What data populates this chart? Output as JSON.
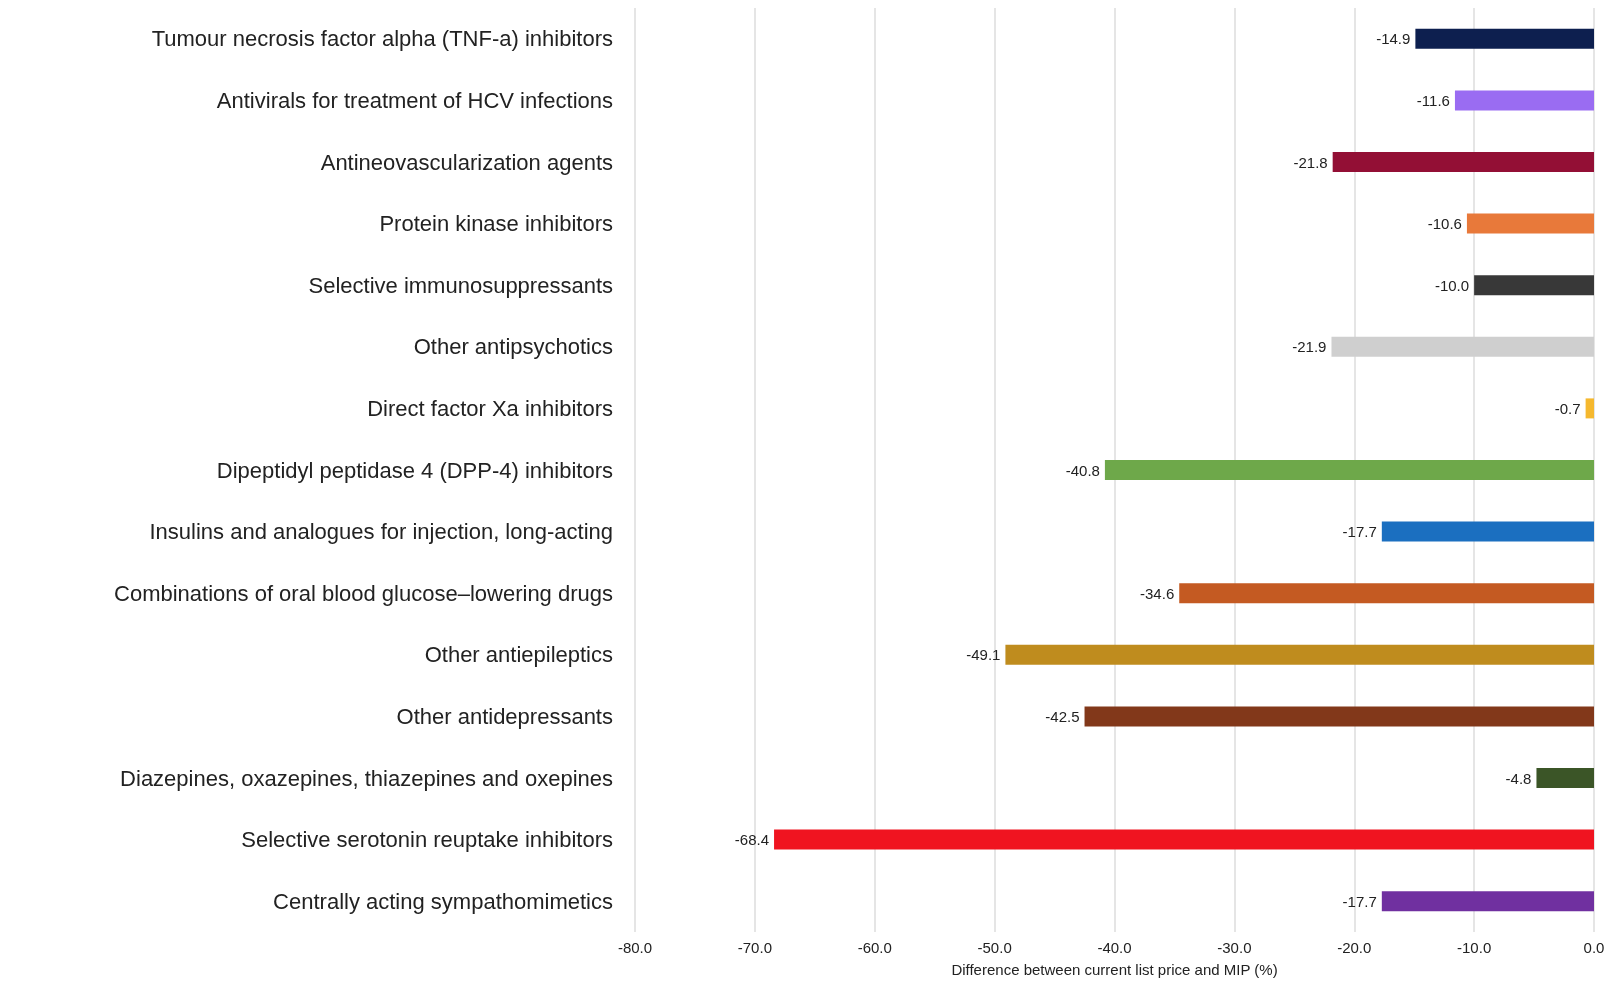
{
  "chart_data": {
    "type": "bar",
    "orientation": "horizontal",
    "xlabel": "Difference between current list price and MIP (%)",
    "categories": [
      "Tumour necrosis factor alpha (TNF-a) inhibitors",
      "Antivirals for treatment of HCV infections",
      "Antineovascularization agents",
      "Protein kinase inhibitors",
      "Selective immunosuppressants",
      "Other antipsychotics",
      "Direct factor Xa inhibitors",
      "Dipeptidyl peptidase 4 (DPP-4) inhibitors",
      "Insulins and analogues for injection, long-acting",
      "Combinations of oral blood glucose–lowering drugs",
      "Other antiepileptics",
      "Other antidepressants",
      "Diazepines, oxazepines, thiazepines and oxepines",
      "Selective serotonin reuptake inhibitors",
      "Centrally acting sympathomimetics"
    ],
    "values": [
      -14.9,
      -11.6,
      -21.8,
      -10.6,
      -10.0,
      -21.9,
      -0.7,
      -40.8,
      -17.7,
      -34.6,
      -49.1,
      -42.5,
      -4.8,
      -68.4,
      -17.7
    ],
    "value_labels": [
      "-14.9",
      "-11.6",
      "-21.8",
      "-10.6",
      "-10.0",
      "-21.9",
      "-0.7",
      "-40.8",
      "-17.7",
      "-34.6",
      "-49.1",
      "-42.5",
      "-4.8",
      "-68.4",
      "-17.7"
    ],
    "colors": [
      "#0d1f4f",
      "#9a6cf2",
      "#930f35",
      "#e8793a",
      "#383838",
      "#cfcfcf",
      "#f5b82e",
      "#6ea84a",
      "#1b6fc0",
      "#c45a22",
      "#bf8c1e",
      "#82381a",
      "#3b5527",
      "#f01420",
      "#7030a0"
    ],
    "xlim": [
      -80,
      0
    ],
    "xticks": [
      {
        "value": -80,
        "label": "-80.0"
      },
      {
        "value": -70,
        "label": "-70.0"
      },
      {
        "value": -60,
        "label": "-60.0"
      },
      {
        "value": -50,
        "label": "-50.0"
      },
      {
        "value": -40,
        "label": "-40.0"
      },
      {
        "value": -30,
        "label": "-30.0"
      },
      {
        "value": -20,
        "label": "-20.0"
      },
      {
        "value": -10,
        "label": "-10.0"
      },
      {
        "value": 0,
        "label": "0.0"
      }
    ],
    "grid": "x"
  }
}
